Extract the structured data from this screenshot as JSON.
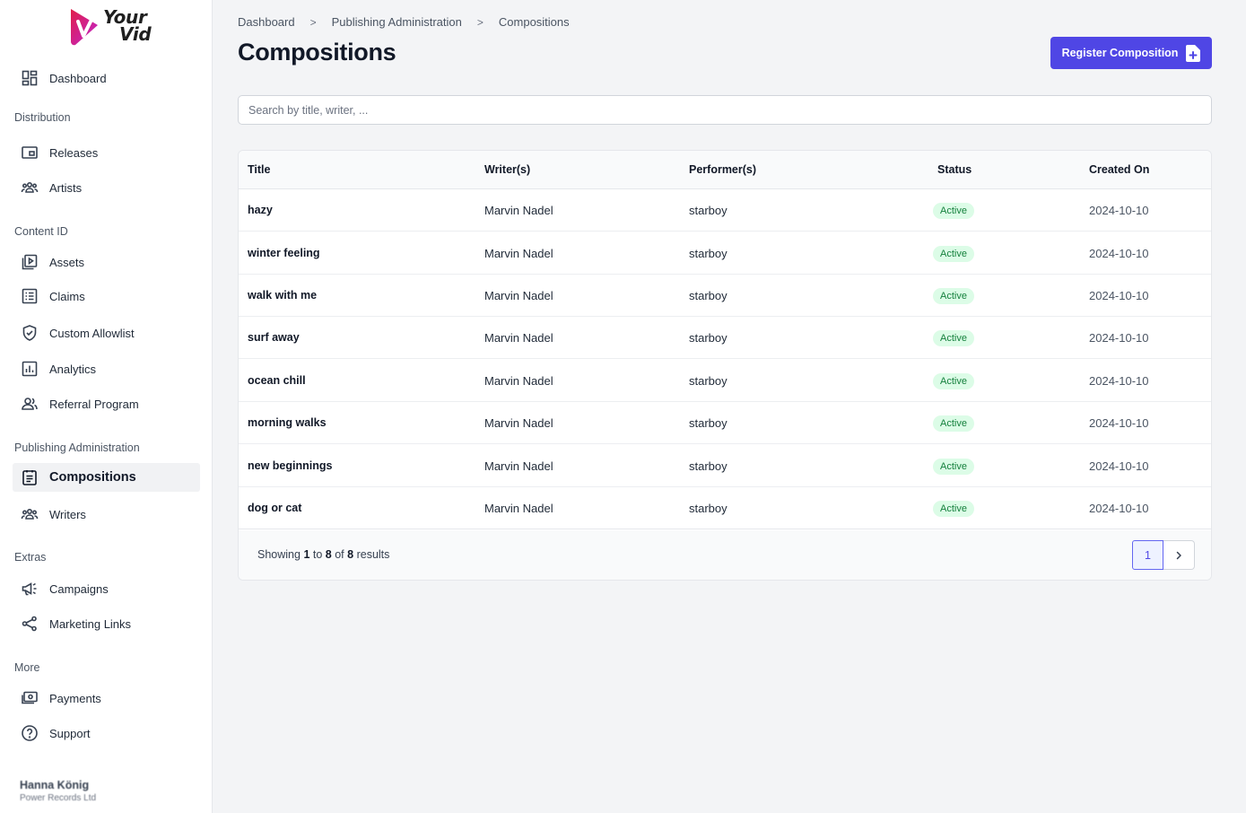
{
  "brand": {
    "line1": "Your",
    "line2": "Vid"
  },
  "sidebar": {
    "dashboard": "Dashboard",
    "sections": [
      {
        "label": "Distribution",
        "items": [
          "Releases",
          "Artists"
        ]
      },
      {
        "label": "Content ID",
        "items": [
          "Assets",
          "Claims",
          "Custom Allowlist",
          "Analytics",
          "Referral Program"
        ]
      },
      {
        "label": "Publishing Administration",
        "items": [
          "Compositions",
          "Writers"
        ]
      },
      {
        "label": "Extras",
        "items": [
          "Campaigns",
          "Marketing Links"
        ]
      },
      {
        "label": "More",
        "items": [
          "Payments",
          "Support"
        ]
      }
    ],
    "active": "Compositions",
    "user": {
      "name": "Hanna König",
      "org": "Power Records Ltd"
    }
  },
  "breadcrumb": [
    "Dashboard",
    "Publishing Administration",
    "Compositions"
  ],
  "page": {
    "title": "Compositions",
    "register_label": "Register Composition",
    "search_placeholder": "Search by title, writer, ..."
  },
  "table": {
    "columns": [
      "Title",
      "Writer(s)",
      "Performer(s)",
      "Status",
      "Created On"
    ],
    "rows": [
      {
        "title": "hazy",
        "writer": "Marvin Nadel",
        "performer": "starboy",
        "status": "Active",
        "created": "2024-10-10"
      },
      {
        "title": "winter feeling",
        "writer": "Marvin Nadel",
        "performer": "starboy",
        "status": "Active",
        "created": "2024-10-10"
      },
      {
        "title": "walk with me",
        "writer": "Marvin Nadel",
        "performer": "starboy",
        "status": "Active",
        "created": "2024-10-10"
      },
      {
        "title": "surf away",
        "writer": "Marvin Nadel",
        "performer": "starboy",
        "status": "Active",
        "created": "2024-10-10"
      },
      {
        "title": "ocean chill",
        "writer": "Marvin Nadel",
        "performer": "starboy",
        "status": "Active",
        "created": "2024-10-10"
      },
      {
        "title": "morning walks",
        "writer": "Marvin Nadel",
        "performer": "starboy",
        "status": "Active",
        "created": "2024-10-10"
      },
      {
        "title": "new beginnings",
        "writer": "Marvin Nadel",
        "performer": "starboy",
        "status": "Active",
        "created": "2024-10-10"
      },
      {
        "title": "dog or cat",
        "writer": "Marvin Nadel",
        "performer": "starboy",
        "status": "Active",
        "created": "2024-10-10"
      }
    ]
  },
  "pagination": {
    "showing_prefix": "Showing",
    "from": "1",
    "to_word": "to",
    "to": "8",
    "of_word": "of",
    "total": "8",
    "results_word": "results",
    "current_page": "1"
  },
  "colors": {
    "primary": "#4f46e5",
    "active_badge_bg": "#dcfce7",
    "active_badge_text": "#15803d"
  }
}
